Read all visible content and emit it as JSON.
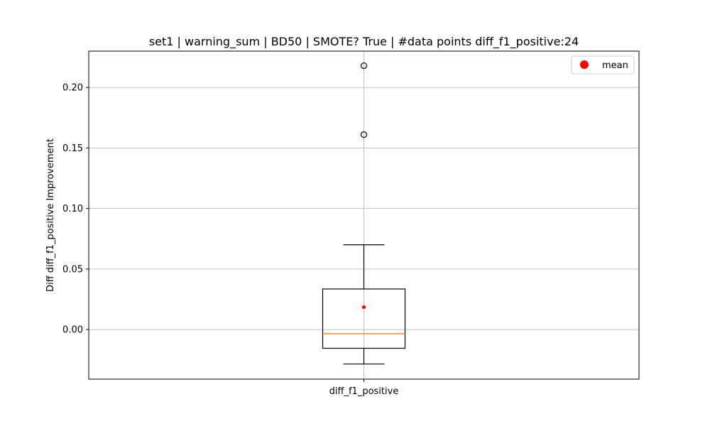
{
  "chart_data": {
    "type": "box",
    "title": "set1 | warning_sum | BD50 | SMOTE? True | #data points diff_f1_positive:24",
    "xlabel": "",
    "ylabel": "Diff diff_f1_positive Improvement",
    "categories": [
      "diff_f1_positive"
    ],
    "ylim": [
      -0.041,
      0.23
    ],
    "yticks": [
      0.0,
      0.05,
      0.1,
      0.15,
      0.2
    ],
    "ytick_labels": [
      "0.00",
      "0.05",
      "0.10",
      "0.15",
      "0.20"
    ],
    "grid": true,
    "legend": {
      "placement": "top-right",
      "entries": [
        "mean"
      ]
    },
    "box": {
      "whisker_low": -0.0285,
      "q1": -0.0155,
      "median": -0.0035,
      "q3": 0.0335,
      "whisker_high": 0.07,
      "mean": 0.0185,
      "outliers": [
        0.161,
        0.218
      ]
    },
    "colors": {
      "median": "#ff7f0e",
      "mean": "#ff0000",
      "grid": "#b0b0b0",
      "axis": "#000000"
    }
  }
}
